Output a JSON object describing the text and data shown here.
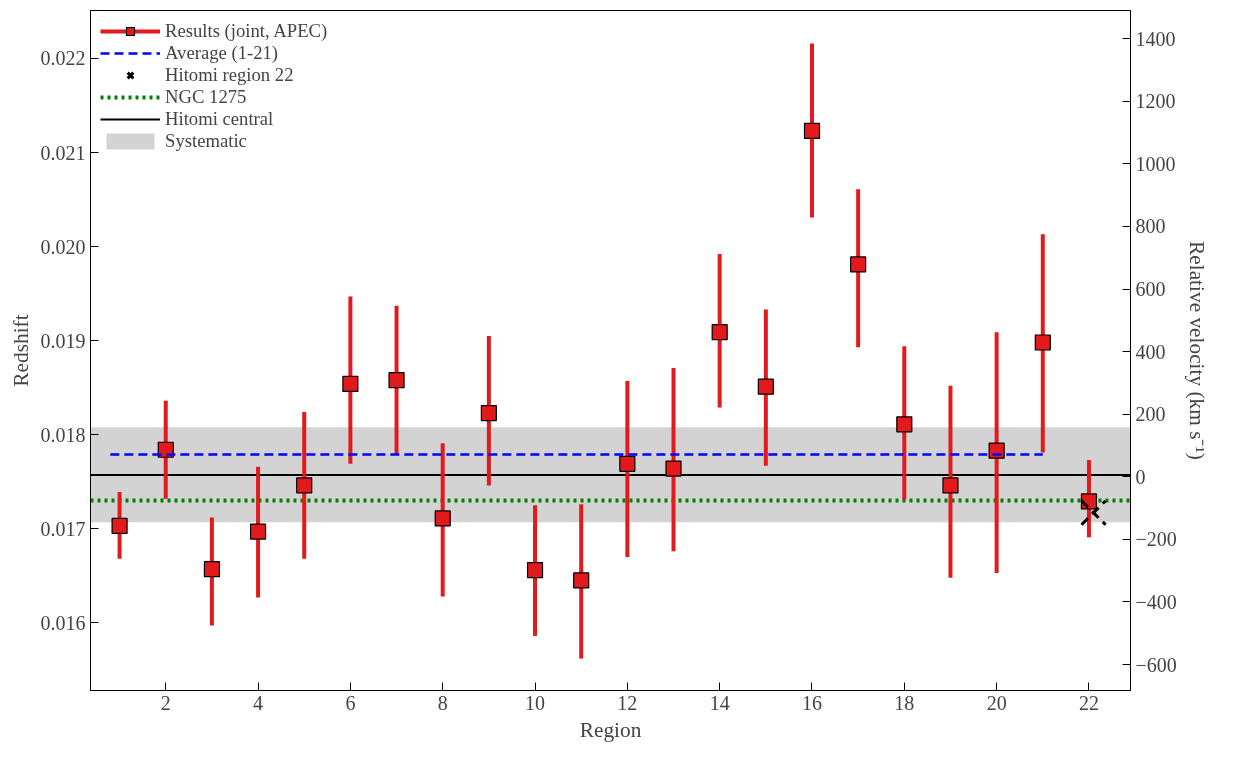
{
  "chart_data": {
    "type": "scatter",
    "xlabel": "Region",
    "ylabel": "Redshift",
    "y2label": "Relative velocity (km s⁻¹)",
    "xlim": [
      0.37,
      22.9
    ],
    "xticks": [
      2,
      4,
      6,
      8,
      10,
      12,
      14,
      16,
      18,
      20,
      22
    ],
    "ylim": [
      0.01528,
      0.02251
    ],
    "yticks": [
      0.016,
      0.017,
      0.018,
      0.019,
      {
        "value": 0.02,
        "label": "0.020"
      },
      0.021,
      0.022
    ],
    "y2lim": [
      -683,
      1490
    ],
    "y2ticks": [
      {
        "value": -600,
        "label": "−600"
      },
      {
        "value": -400,
        "label": "−400"
      },
      {
        "value": -200,
        "label": "−200"
      },
      0,
      200,
      400,
      600,
      800,
      1000,
      1200,
      1400
    ],
    "grid": false,
    "legend": "top left",
    "series": [
      {
        "name": "Results (joint, APEC)",
        "marker": "square",
        "color": "#e31a1c",
        "x": [
          1,
          2,
          3,
          4,
          5,
          6,
          7,
          8,
          9,
          10,
          11,
          12,
          13,
          14,
          15,
          16,
          17,
          18,
          19,
          20,
          21,
          22
        ],
        "values": [
          0.01703,
          0.01784,
          0.01657,
          0.01697,
          0.01746,
          0.01854,
          0.01858,
          0.01711,
          0.01823,
          0.01656,
          0.01645,
          0.01769,
          0.01764,
          0.01909,
          0.01851,
          0.02123,
          0.01981,
          0.01811,
          0.01746,
          0.01783,
          0.01898,
          0.01729
        ],
        "errors": [
          [
            0.01668,
            0.01739
          ],
          [
            0.01732,
            0.01836
          ],
          [
            0.01597,
            0.01712
          ],
          [
            0.01627,
            0.01766
          ],
          [
            0.01668,
            0.01824
          ],
          [
            0.01769,
            0.01947
          ],
          [
            0.01779,
            0.01937
          ],
          [
            0.01628,
            0.01791
          ],
          [
            0.01746,
            0.01905
          ],
          [
            0.01586,
            0.01725
          ],
          [
            0.01562,
            0.01726
          ],
          [
            0.0167,
            0.01857
          ],
          [
            0.01676,
            0.01871
          ],
          [
            0.01829,
            0.01992
          ],
          [
            0.01767,
            0.01933
          ],
          [
            0.02031,
            0.02216
          ],
          [
            0.01893,
            0.02061
          ],
          [
            0.01731,
            0.01894
          ],
          [
            0.01648,
            0.01852
          ],
          [
            0.01653,
            0.01909
          ],
          [
            0.01781,
            0.02013
          ],
          [
            0.01691,
            0.01773
          ]
        ]
      },
      {
        "name": "Average (1-21)",
        "type": "line",
        "line_style": "dashed",
        "color": "#0000ff",
        "x": [
          0.8,
          21.0
        ],
        "values": [
          0.01779,
          0.01779
        ]
      },
      {
        "name": "Hitomi region 22",
        "marker": "cross",
        "color": "#000000",
        "x": [
          22.1
        ],
        "values": [
          0.01717
        ]
      }
    ],
    "ref_lines": [
      {
        "axis": "y",
        "value": 0.0173,
        "label": "NGC 1275",
        "color": "#008000",
        "line_style": "dotted"
      },
      {
        "axis": "y",
        "value": 0.01757,
        "label": "Hitomi central",
        "color": "#000000",
        "line_style": "solid"
      }
    ],
    "bands": [
      {
        "axis": "y",
        "from": 0.01707,
        "to": 0.01808,
        "label": "Systematic",
        "color": "#d3d3d3"
      }
    ]
  }
}
